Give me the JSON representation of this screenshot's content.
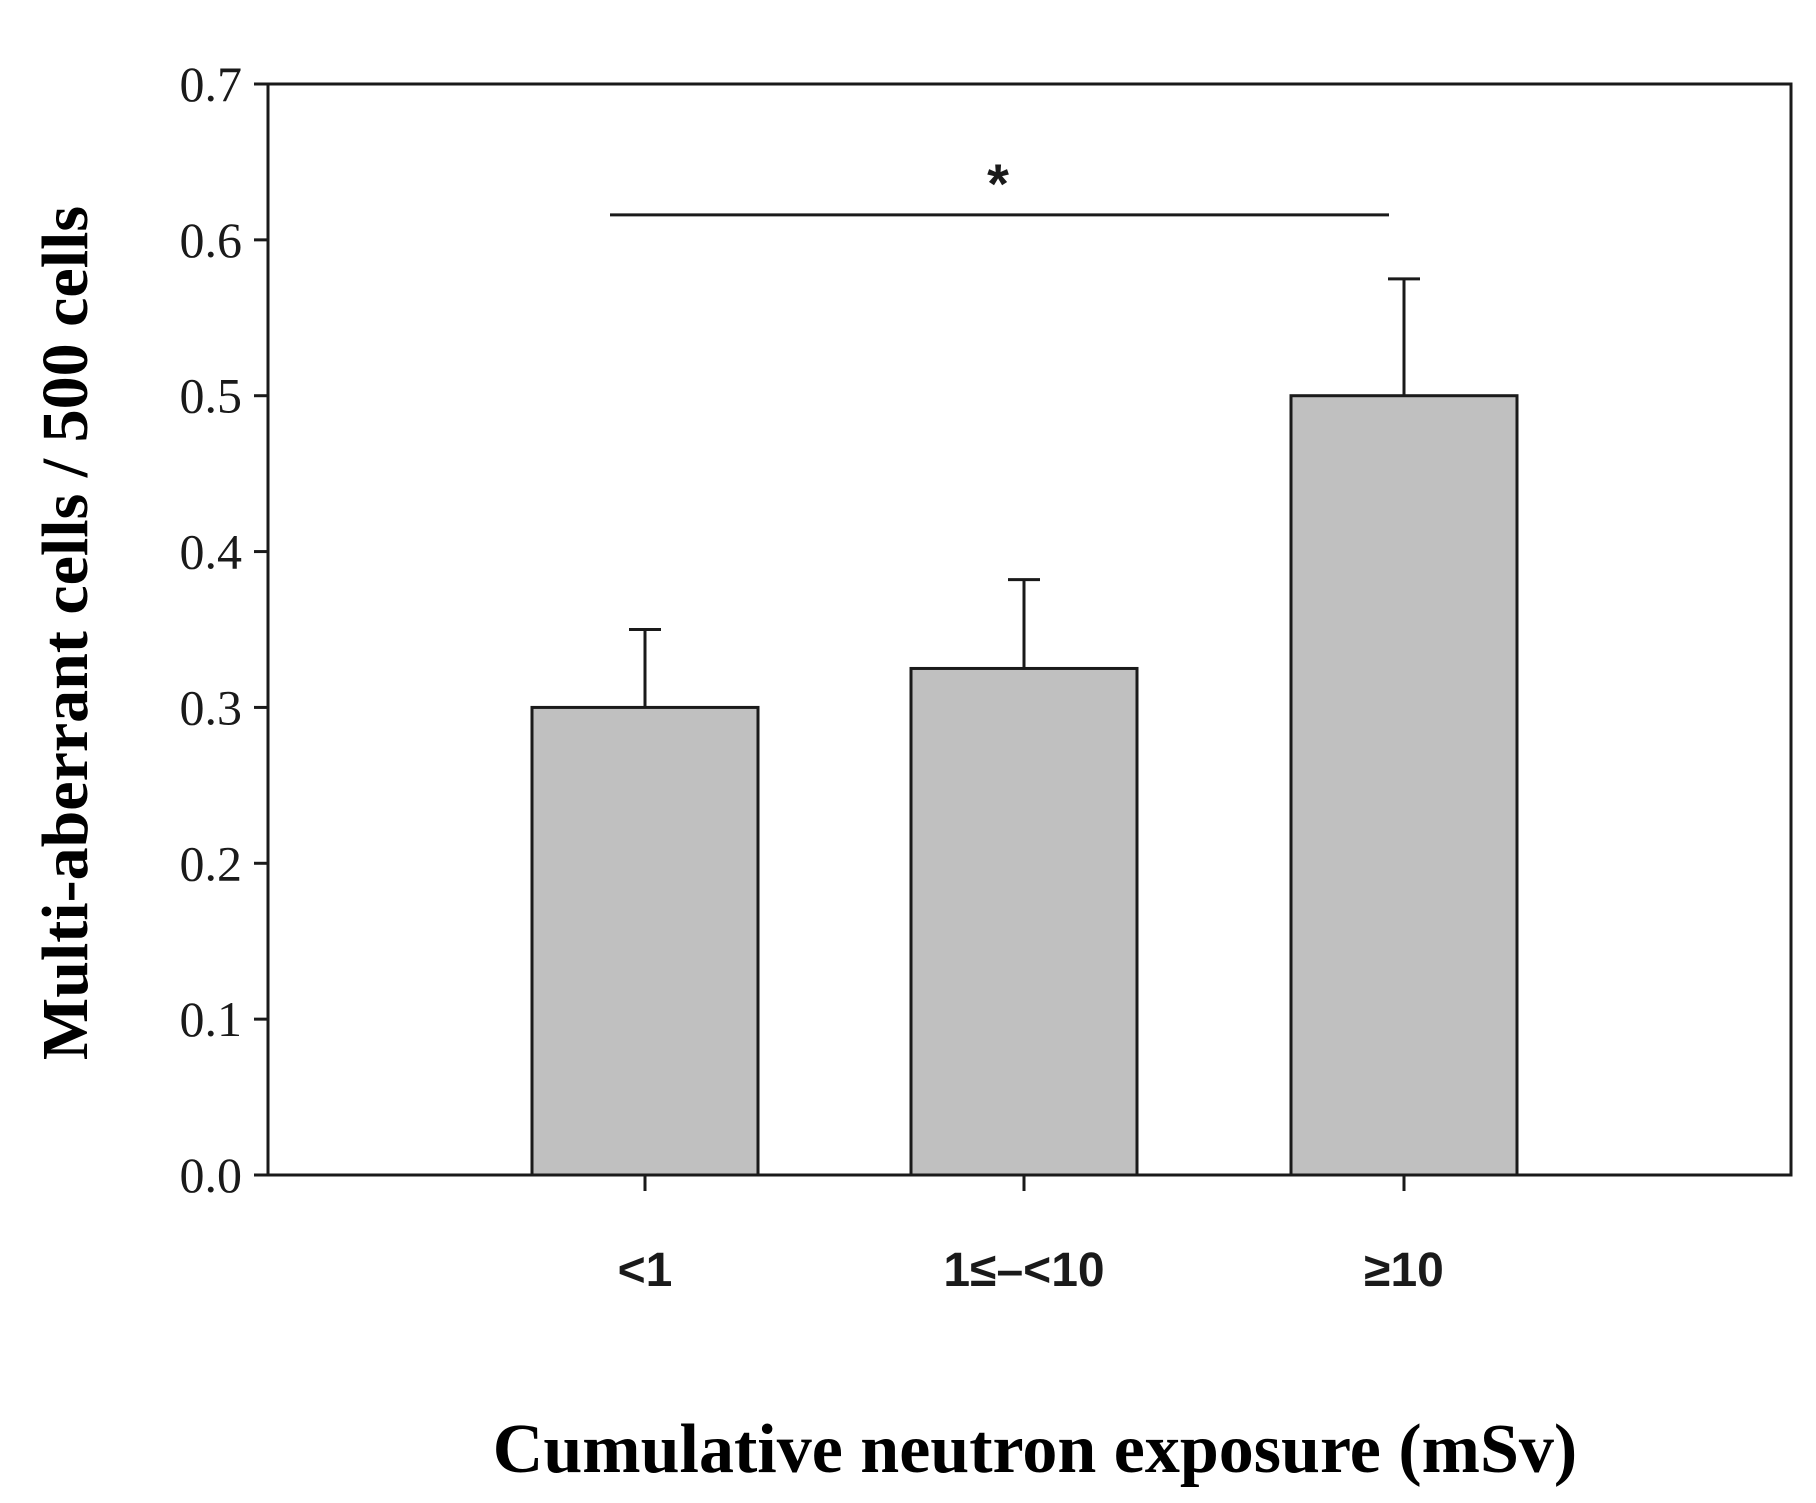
{
  "chart_data": {
    "type": "bar",
    "categories": [
      "<1",
      "1≤–<10",
      "≥10"
    ],
    "values": [
      0.3,
      0.325,
      0.5
    ],
    "errors": [
      0.05,
      0.057,
      0.075
    ],
    "xlabel": "Cumulative neutron exposure (mSv)",
    "ylabel": "Multi-aberrant cells / 500 cells",
    "ylim": [
      0,
      0.7
    ],
    "yticks": [
      "0.0",
      "0.1",
      "0.2",
      "0.3",
      "0.4",
      "0.5",
      "0.6",
      "0.7"
    ],
    "significance": {
      "from": 0,
      "to": 2,
      "label": "*"
    },
    "grid": false,
    "colors": {
      "bar_fill": "#c0c0c0",
      "bar_stroke": "#1a1a1a",
      "axis": "#1a1a1a"
    }
  }
}
